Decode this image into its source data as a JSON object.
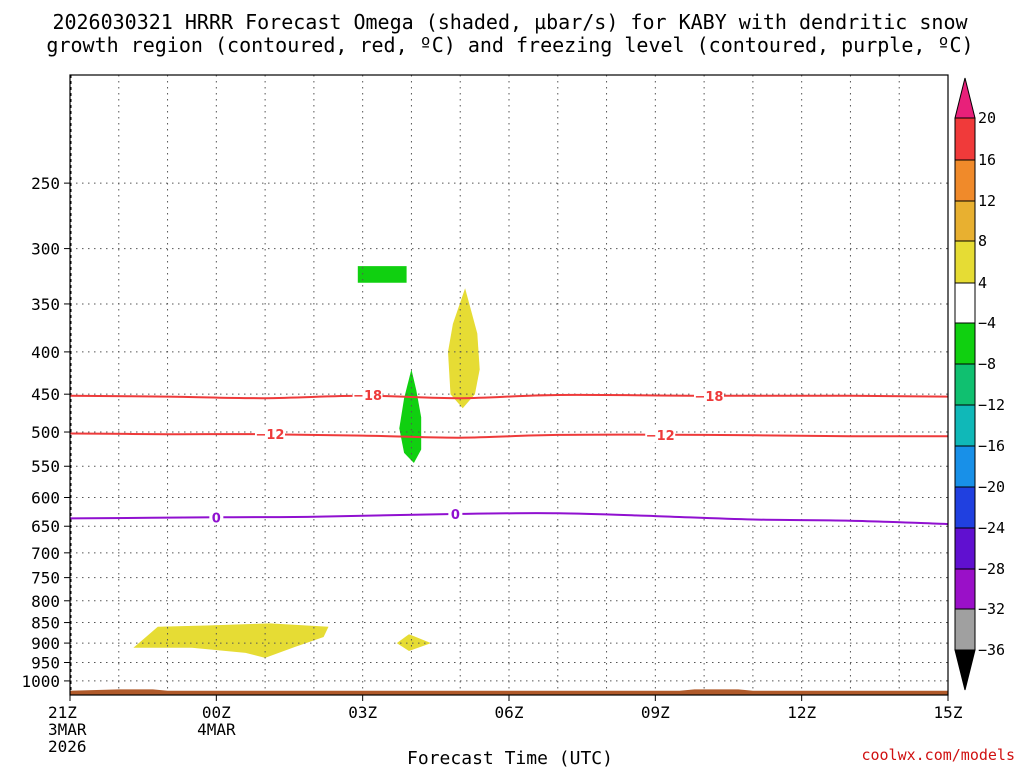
{
  "chart_data": {
    "type": "heatmap",
    "title_lines": [
      "2026030321 HRRR Forecast Omega (shaded, µbar/s) for KABY with dendritic snow",
      "growth region (contoured, red, ºC) and freezing level (contoured, purple, ºC)"
    ],
    "xlabel": "Forecast Time (UTC)",
    "credit": "coolwx.com/models",
    "x_ticks": [
      {
        "hour": 0,
        "lines": [
          "21Z",
          "3MAR",
          "2026"
        ]
      },
      {
        "hour": 3,
        "lines": [
          "00Z",
          "4MAR"
        ]
      },
      {
        "hour": 6,
        "lines": [
          "03Z"
        ]
      },
      {
        "hour": 9,
        "lines": [
          "06Z"
        ]
      },
      {
        "hour": 12,
        "lines": [
          "09Z"
        ]
      },
      {
        "hour": 15,
        "lines": [
          "12Z"
        ]
      },
      {
        "hour": 18,
        "lines": [
          "15Z"
        ]
      }
    ],
    "xlim_hours": [
      0,
      18
    ],
    "y_axis": {
      "scale": "log-pressure",
      "unit": "hPa",
      "ylim": [
        1040,
        185
      ],
      "ticks": [
        250,
        300,
        350,
        400,
        450,
        500,
        550,
        600,
        650,
        700,
        750,
        800,
        850,
        900,
        950,
        1000
      ]
    },
    "colorbar": {
      "ticks": [
        20,
        16,
        12,
        8,
        4,
        -4,
        -8,
        -12,
        -16,
        -20,
        -24,
        -28,
        -32,
        -36
      ],
      "bands": [
        {
          "low": 16,
          "high": 20,
          "color": "#f03a3a"
        },
        {
          "low": 12,
          "high": 16,
          "color": "#f08a2a"
        },
        {
          "low": 8,
          "high": 12,
          "color": "#e8b030"
        },
        {
          "low": 4,
          "high": 8,
          "color": "#e6dc34"
        },
        {
          "low": -4,
          "high": 4,
          "color": "#ffffff"
        },
        {
          "low": -8,
          "high": -4,
          "color": "#10d010"
        },
        {
          "low": -12,
          "high": -8,
          "color": "#10c070"
        },
        {
          "low": -16,
          "high": -12,
          "color": "#10b8b8"
        },
        {
          "low": -20,
          "high": -16,
          "color": "#1890e8"
        },
        {
          "low": -24,
          "high": -20,
          "color": "#2040e0"
        },
        {
          "low": -28,
          "high": -24,
          "color": "#6010d0"
        },
        {
          "low": -32,
          "high": -28,
          "color": "#9a10c8"
        },
        {
          "low": -36,
          "high": -32,
          "color": "#a0a0a0"
        }
      ],
      "over_color": "#e8207a",
      "under_color": "#000000"
    },
    "shaded_regions": [
      {
        "name": "omega-ascent-upper-box",
        "color": "#10d010",
        "points": [
          [
            5.9,
            315
          ],
          [
            6.9,
            315
          ],
          [
            6.9,
            330
          ],
          [
            5.9,
            330
          ]
        ]
      },
      {
        "name": "omega-ascent-midlevel-plume",
        "color": "#10d010",
        "points": [
          [
            7.0,
            420
          ],
          [
            7.1,
            445
          ],
          [
            7.2,
            480
          ],
          [
            7.2,
            525
          ],
          [
            7.05,
            545
          ],
          [
            6.85,
            530
          ],
          [
            6.75,
            495
          ],
          [
            6.85,
            455
          ]
        ]
      },
      {
        "name": "omega-positive-upper-plume",
        "color": "#e6dc34",
        "points": [
          [
            8.1,
            335
          ],
          [
            8.35,
            380
          ],
          [
            8.4,
            420
          ],
          [
            8.3,
            450
          ],
          [
            8.05,
            468
          ],
          [
            7.8,
            450
          ],
          [
            7.75,
            400
          ],
          [
            7.85,
            370
          ]
        ]
      },
      {
        "name": "omega-positive-low-level-band",
        "color": "#e6dc34",
        "points": [
          [
            1.3,
            912
          ],
          [
            1.8,
            860
          ],
          [
            2.8,
            857
          ],
          [
            4.1,
            852
          ],
          [
            5.3,
            860
          ],
          [
            5.2,
            885
          ],
          [
            4.6,
            910
          ],
          [
            4.0,
            938
          ],
          [
            3.6,
            925
          ],
          [
            2.5,
            912
          ]
        ]
      },
      {
        "name": "omega-positive-small-patch",
        "color": "#e6dc34",
        "points": [
          [
            6.95,
            878
          ],
          [
            7.4,
            900
          ],
          [
            6.95,
            920
          ],
          [
            6.7,
            900
          ]
        ]
      }
    ],
    "contours": [
      {
        "name": "dgz-minus-18-contour",
        "value": -18,
        "color": "#ee3a3a",
        "points": [
          [
            0,
            452
          ],
          [
            2,
            453
          ],
          [
            4,
            455
          ],
          [
            6,
            452
          ],
          [
            8,
            455
          ],
          [
            10,
            451
          ],
          [
            13,
            452
          ],
          [
            16,
            452
          ],
          [
            18,
            453
          ]
        ],
        "labels": [
          [
            6.1,
            451
          ],
          [
            13.1,
            452
          ]
        ]
      },
      {
        "name": "dgz-minus-12-contour",
        "value": -12,
        "color": "#ee3a3a",
        "points": [
          [
            0,
            502
          ],
          [
            2,
            503
          ],
          [
            4,
            503
          ],
          [
            6,
            505
          ],
          [
            8,
            508
          ],
          [
            10,
            504
          ],
          [
            13,
            504
          ],
          [
            16,
            506
          ],
          [
            18,
            506
          ]
        ],
        "labels": [
          [
            4.1,
            503
          ],
          [
            12.1,
            504
          ]
        ]
      },
      {
        "name": "freezing-level-contour",
        "value": 0,
        "color": "#9010d0",
        "points": [
          [
            0,
            636
          ],
          [
            3,
            634
          ],
          [
            5,
            633
          ],
          [
            8,
            628
          ],
          [
            10,
            627
          ],
          [
            12,
            632
          ],
          [
            14,
            638
          ],
          [
            16,
            640
          ],
          [
            18,
            646
          ]
        ],
        "labels": [
          [
            3.0,
            634
          ],
          [
            7.9,
            628
          ]
        ]
      }
    ],
    "terrain": {
      "color": "#b05a2a",
      "points": [
        [
          0,
          1028
        ],
        [
          1,
          1024
        ],
        [
          1.7,
          1024
        ],
        [
          2,
          1028
        ],
        [
          12.5,
          1028
        ],
        [
          12.8,
          1024
        ],
        [
          13.7,
          1024
        ],
        [
          14,
          1028
        ],
        [
          18,
          1028
        ]
      ]
    }
  }
}
